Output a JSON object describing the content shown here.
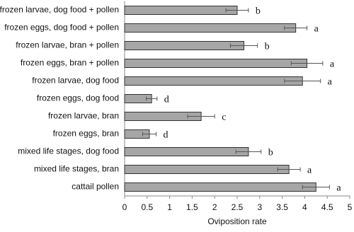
{
  "chart_data": {
    "type": "bar",
    "orientation": "horizontal",
    "x_label": "Oviposition rate",
    "categories": [
      "frozen larvae, dog food + pollen",
      "frozen eggs, dog food + pollen",
      "frozen larvae, bran + pollen",
      "frozen eggs, bran + pollen",
      "frozen larvae, dog food",
      "frozen eggs, dog food",
      "frozen larvae, bran",
      "frozen eggs, bran",
      "mixed life stages, dog food",
      "mixed life stages, bran",
      "cattail pollen"
    ],
    "values": [
      2.5,
      3.8,
      2.65,
      4.05,
      3.95,
      0.6,
      1.7,
      0.55,
      2.75,
      3.65,
      4.25
    ],
    "errors": [
      0.25,
      0.25,
      0.3,
      0.35,
      0.4,
      0.12,
      0.3,
      0.15,
      0.28,
      0.25,
      0.3
    ],
    "letters": [
      "b",
      "a",
      "b",
      "a",
      "a",
      "d",
      "c",
      "d",
      "b",
      "a",
      "a"
    ],
    "color": "#a6a6a6",
    "xlim": [
      0,
      5
    ],
    "xticks": [
      0,
      0.5,
      1,
      1.5,
      2,
      2.5,
      3,
      3.5,
      4,
      4.5,
      5
    ]
  }
}
